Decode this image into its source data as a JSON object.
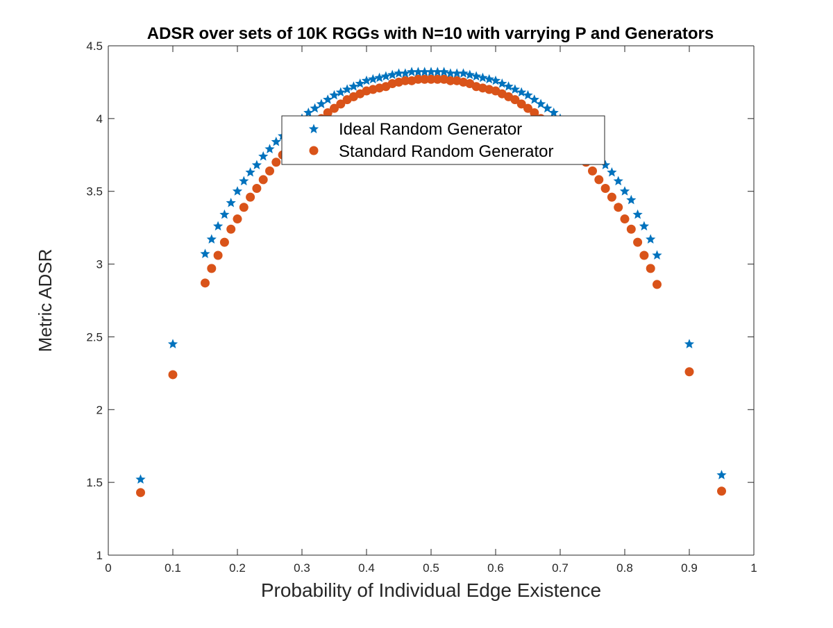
{
  "chart_data": {
    "type": "scatter",
    "title": "ADSR over sets of 10K RGGs with N=10 with varrying P and Generators",
    "xlabel": "Probability of Individual Edge Existence",
    "ylabel": "Metric ADSR",
    "xlim": [
      0,
      1
    ],
    "ylim": [
      1,
      4.5
    ],
    "xticks": [
      "0",
      "0.1",
      "0.2",
      "0.3",
      "0.4",
      "0.5",
      "0.6",
      "0.7",
      "0.8",
      "0.9",
      "1"
    ],
    "yticks": [
      "1",
      "1.5",
      "2",
      "2.5",
      "3",
      "3.5",
      "4",
      "4.5"
    ],
    "grid": false,
    "legend_position": "top-center",
    "x": [
      0.05,
      0.1,
      0.15,
      0.16,
      0.17,
      0.18,
      0.19,
      0.2,
      0.21,
      0.22,
      0.23,
      0.24,
      0.25,
      0.26,
      0.27,
      0.28,
      0.29,
      0.3,
      0.31,
      0.32,
      0.33,
      0.34,
      0.35,
      0.36,
      0.37,
      0.38,
      0.39,
      0.4,
      0.41,
      0.42,
      0.43,
      0.44,
      0.45,
      0.46,
      0.47,
      0.48,
      0.49,
      0.5,
      0.51,
      0.52,
      0.53,
      0.54,
      0.55,
      0.56,
      0.57,
      0.58,
      0.59,
      0.6,
      0.61,
      0.62,
      0.63,
      0.64,
      0.65,
      0.66,
      0.67,
      0.68,
      0.69,
      0.7,
      0.71,
      0.72,
      0.73,
      0.74,
      0.75,
      0.76,
      0.77,
      0.78,
      0.79,
      0.8,
      0.81,
      0.82,
      0.83,
      0.84,
      0.85,
      0.9,
      0.95
    ],
    "series": [
      {
        "name": "Ideal Random Generator",
        "marker": "star",
        "color": "#0072BD",
        "values": [
          1.52,
          2.45,
          3.07,
          3.17,
          3.26,
          3.34,
          3.42,
          3.5,
          3.57,
          3.63,
          3.68,
          3.74,
          3.79,
          3.84,
          3.88,
          3.92,
          3.96,
          4.0,
          4.04,
          4.07,
          4.1,
          4.13,
          4.16,
          4.18,
          4.2,
          4.22,
          4.24,
          4.26,
          4.27,
          4.28,
          4.29,
          4.3,
          4.31,
          4.31,
          4.32,
          4.32,
          4.32,
          4.32,
          4.32,
          4.32,
          4.31,
          4.31,
          4.31,
          4.3,
          4.29,
          4.28,
          4.27,
          4.26,
          4.24,
          4.22,
          4.2,
          4.18,
          4.16,
          4.13,
          4.1,
          4.07,
          4.04,
          4.0,
          3.96,
          3.92,
          3.88,
          3.84,
          3.79,
          3.74,
          3.68,
          3.63,
          3.57,
          3.5,
          3.44,
          3.34,
          3.26,
          3.17,
          3.06,
          2.45,
          1.55
        ]
      },
      {
        "name": "Standard Random Generator",
        "marker": "circle",
        "color": "#D95319",
        "values": [
          1.43,
          2.24,
          2.87,
          2.97,
          3.06,
          3.15,
          3.24,
          3.31,
          3.39,
          3.46,
          3.52,
          3.58,
          3.64,
          3.7,
          3.75,
          3.8,
          3.85,
          3.89,
          3.93,
          3.97,
          4.0,
          4.04,
          4.07,
          4.1,
          4.13,
          4.15,
          4.17,
          4.19,
          4.2,
          4.21,
          4.22,
          4.24,
          4.25,
          4.26,
          4.26,
          4.27,
          4.27,
          4.27,
          4.27,
          4.27,
          4.26,
          4.26,
          4.25,
          4.24,
          4.22,
          4.21,
          4.2,
          4.19,
          4.17,
          4.15,
          4.13,
          4.1,
          4.07,
          4.04,
          4.0,
          3.97,
          3.93,
          3.89,
          3.85,
          3.8,
          3.75,
          3.7,
          3.64,
          3.58,
          3.52,
          3.46,
          3.39,
          3.31,
          3.24,
          3.15,
          3.06,
          2.97,
          2.86,
          2.26,
          1.44
        ]
      }
    ]
  }
}
